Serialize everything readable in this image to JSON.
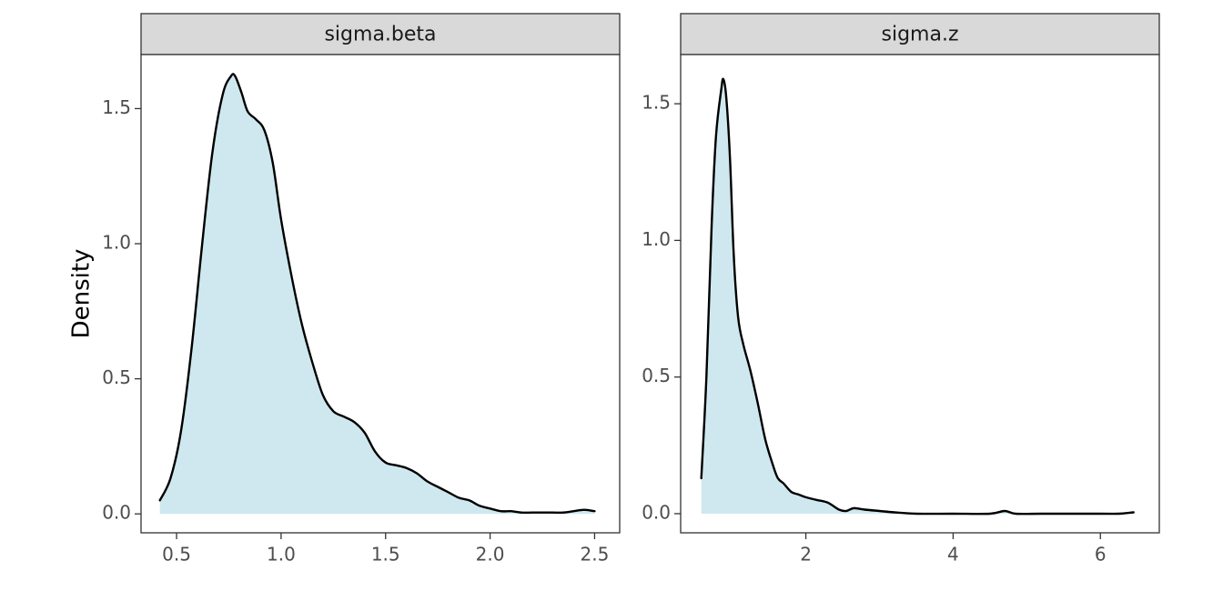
{
  "chart_data": {
    "type": "area",
    "ylabel": "Density",
    "xlabel": "",
    "fill_color": "#cfe8ef",
    "line_color": "#000000",
    "strip_color": "#d9d9d9",
    "panels": [
      {
        "name": "sigma.beta",
        "xlim": [
          0.33,
          2.62
        ],
        "ylim": [
          -0.07,
          1.7
        ],
        "x_ticks": [
          0.5,
          1.0,
          1.5,
          2.0,
          2.5
        ],
        "x_tick_labels": [
          "0.5",
          "1.0",
          "1.5",
          "2.0",
          "2.5"
        ],
        "y_ticks": [
          0.0,
          0.5,
          1.0,
          1.5
        ],
        "y_tick_labels": [
          "0.0",
          "0.5",
          "1.0",
          "1.5"
        ],
        "x": [
          0.42,
          0.47,
          0.52,
          0.57,
          0.62,
          0.67,
          0.72,
          0.76,
          0.78,
          0.81,
          0.84,
          0.88,
          0.92,
          0.96,
          1.0,
          1.05,
          1.1,
          1.15,
          1.2,
          1.25,
          1.3,
          1.35,
          1.4,
          1.45,
          1.5,
          1.55,
          1.6,
          1.65,
          1.7,
          1.75,
          1.8,
          1.85,
          1.9,
          1.95,
          2.0,
          2.05,
          2.1,
          2.15,
          2.2,
          2.25,
          2.3,
          2.35,
          2.4,
          2.45,
          2.5
        ],
        "y": [
          0.05,
          0.13,
          0.3,
          0.6,
          0.98,
          1.33,
          1.55,
          1.62,
          1.62,
          1.56,
          1.49,
          1.46,
          1.42,
          1.3,
          1.09,
          0.88,
          0.7,
          0.56,
          0.44,
          0.38,
          0.36,
          0.34,
          0.3,
          0.23,
          0.19,
          0.18,
          0.17,
          0.15,
          0.12,
          0.1,
          0.08,
          0.06,
          0.05,
          0.03,
          0.02,
          0.01,
          0.01,
          0.005,
          0.005,
          0.005,
          0.005,
          0.005,
          0.01,
          0.015,
          0.01
        ]
      },
      {
        "name": "sigma.z",
        "xlim": [
          0.3,
          6.8
        ],
        "ylim": [
          -0.07,
          1.68
        ],
        "x_ticks": [
          2,
          4,
          6
        ],
        "x_tick_labels": [
          "2",
          "4",
          "6"
        ],
        "y_ticks": [
          0.0,
          0.5,
          1.0,
          1.5
        ],
        "y_tick_labels": [
          "0.0",
          "0.5",
          "1.0",
          "1.5"
        ],
        "x": [
          0.58,
          0.65,
          0.72,
          0.78,
          0.85,
          0.88,
          0.92,
          0.97,
          1.02,
          1.08,
          1.15,
          1.25,
          1.35,
          1.45,
          1.55,
          1.62,
          1.7,
          1.8,
          1.9,
          2.0,
          2.15,
          2.3,
          2.45,
          2.55,
          2.65,
          2.8,
          3.0,
          3.2,
          3.5,
          4.0,
          4.5,
          4.7,
          4.85,
          5.2,
          6.0,
          6.25,
          6.45
        ],
        "y": [
          0.13,
          0.5,
          1.05,
          1.38,
          1.55,
          1.59,
          1.52,
          1.3,
          0.95,
          0.72,
          0.62,
          0.52,
          0.4,
          0.27,
          0.18,
          0.13,
          0.11,
          0.08,
          0.07,
          0.06,
          0.05,
          0.04,
          0.015,
          0.01,
          0.02,
          0.015,
          0.01,
          0.005,
          0.0,
          0.0,
          0.0,
          0.01,
          0.0,
          0.0,
          0.0,
          0.0,
          0.005
        ]
      }
    ]
  }
}
